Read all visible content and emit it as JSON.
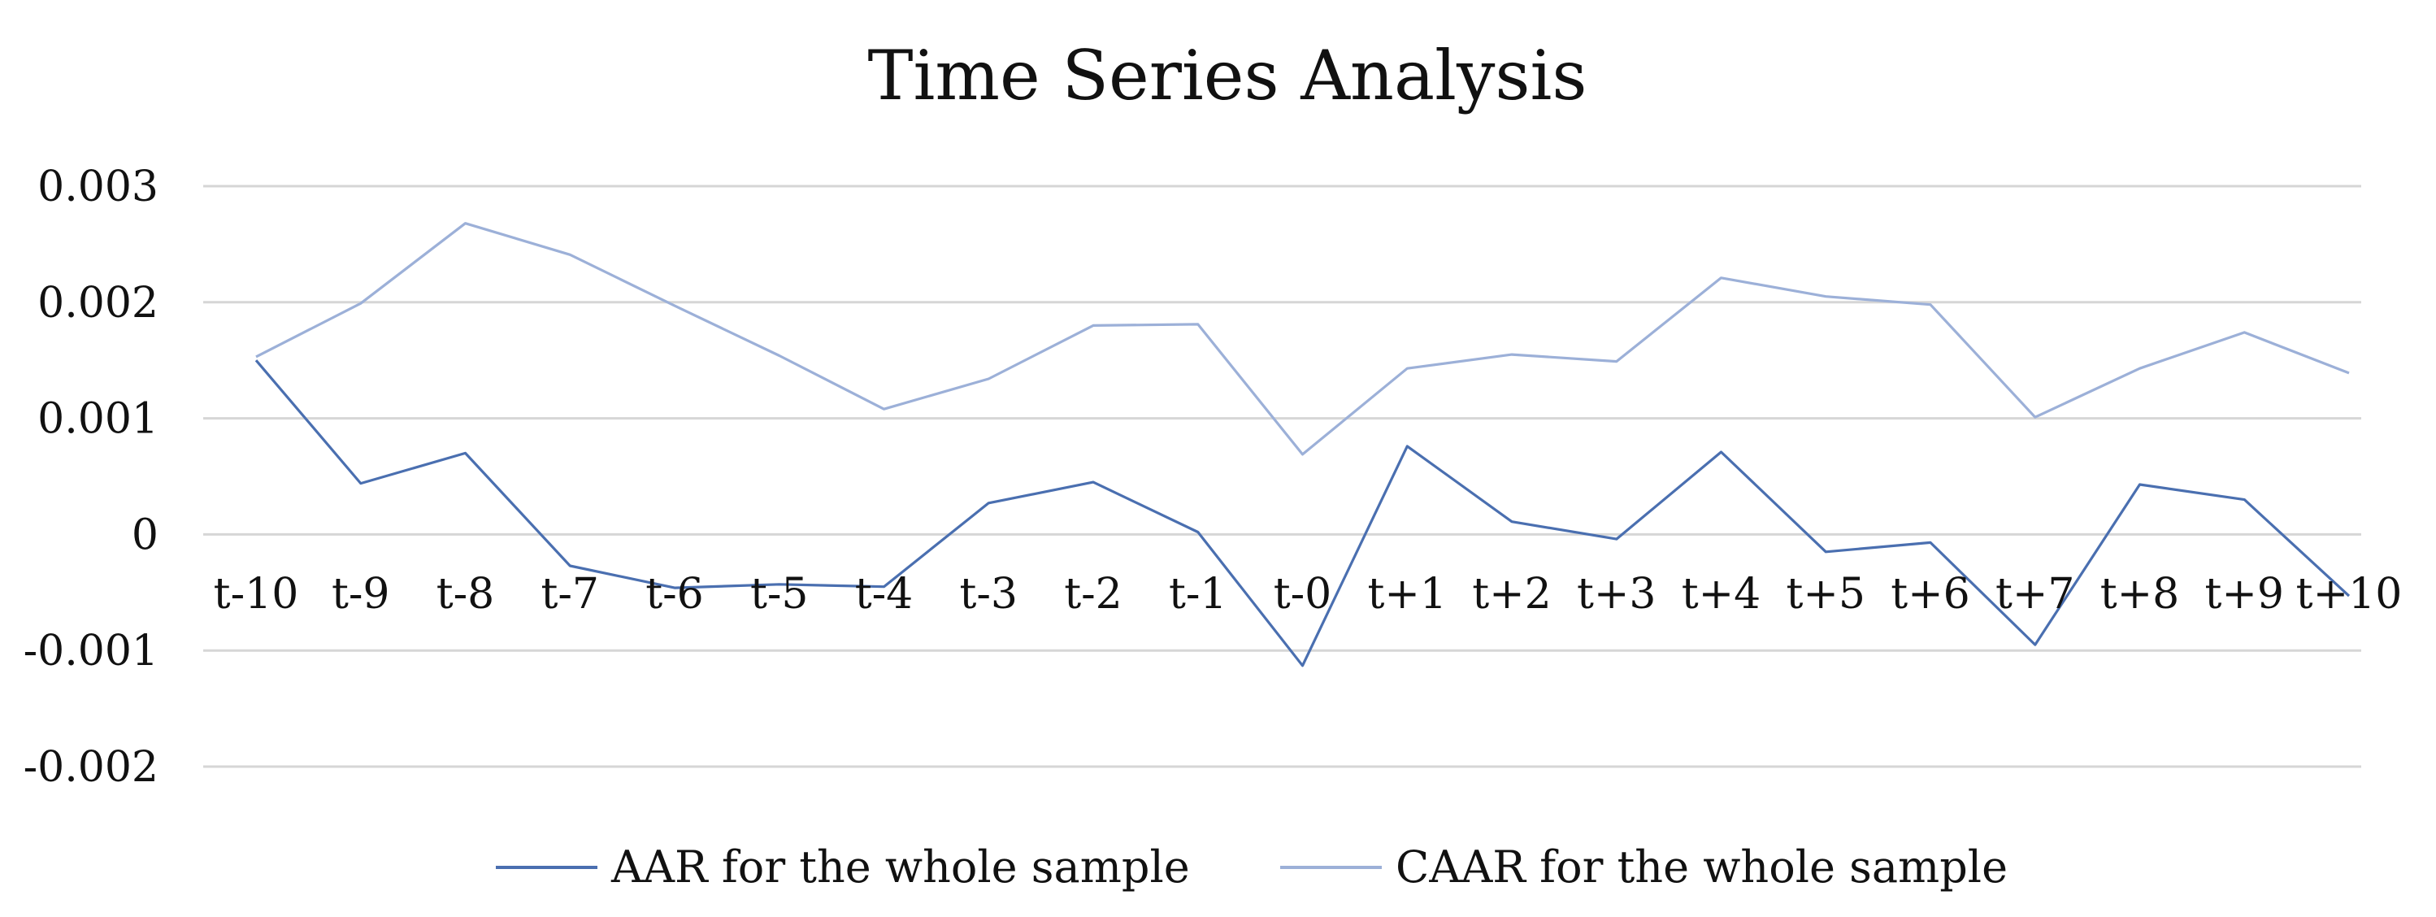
{
  "chart_data": {
    "type": "line",
    "title": "Time Series Analysis",
    "xlabel": "",
    "ylabel": "",
    "categories": [
      "t-10",
      "t-9",
      "t-8",
      "t-7",
      "t-6",
      "t-5",
      "t-4",
      "t-3",
      "t-2",
      "t-1",
      "t-0",
      "t+1",
      "t+2",
      "t+3",
      "t+4",
      "t+5",
      "t+6",
      "t+7",
      "t+8",
      "t+9",
      "t+10"
    ],
    "ylim": [
      -0.002,
      0.003
    ],
    "yticks": [
      0.003,
      0.002,
      0.001,
      0,
      -0.001,
      -0.002
    ],
    "ytick_labels": [
      "0.003",
      "0.002",
      "0.001",
      "0",
      "-0.001",
      "-0.002"
    ],
    "grid": true,
    "legend_position": "bottom",
    "series": [
      {
        "name": "AAR  for the whole sample",
        "color": "#4a6fb0",
        "values": [
          0.0015,
          0.00044,
          0.0007,
          -0.00027,
          -0.00046,
          -0.00043,
          -0.00045,
          0.00027,
          0.00045,
          2e-05,
          -0.00113,
          0.00076,
          0.00011,
          -4e-05,
          0.00071,
          -0.00015,
          -7e-05,
          -0.00095,
          0.00043,
          0.0003,
          -0.00053
        ]
      },
      {
        "name": "CAAR for the whole sample",
        "color": "#9cb0d8",
        "values": [
          0.00153,
          0.00199,
          0.00268,
          0.00241,
          0.00197,
          0.00154,
          0.00108,
          0.00134,
          0.0018,
          0.00181,
          0.00069,
          0.00143,
          0.00155,
          0.00149,
          0.00221,
          0.00205,
          0.00198,
          0.00101,
          0.00143,
          0.00174,
          0.00139
        ]
      }
    ]
  }
}
